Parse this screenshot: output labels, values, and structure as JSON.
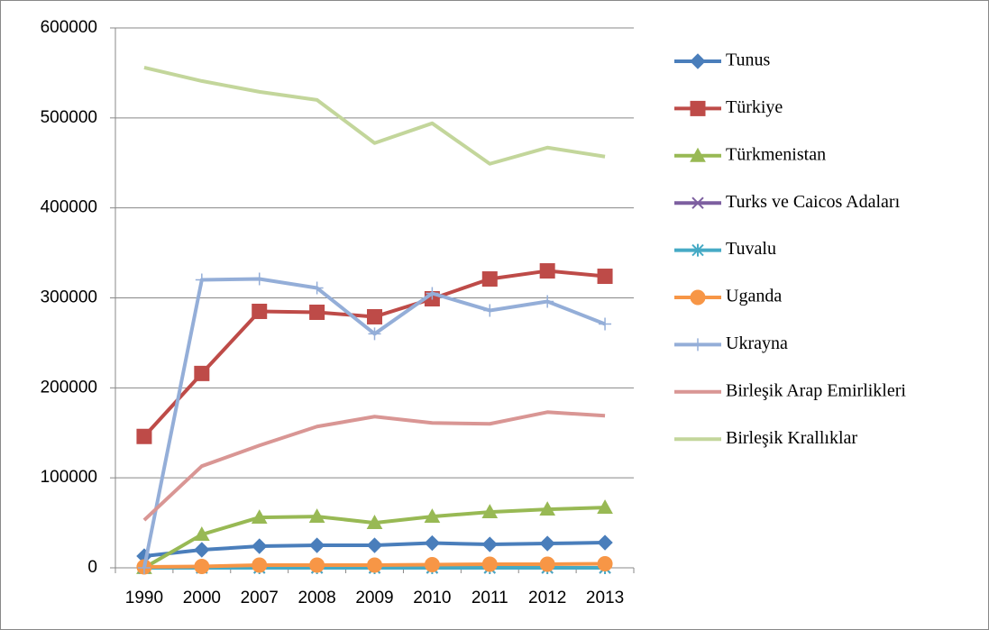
{
  "chart_data": {
    "type": "line",
    "categories": [
      "1990",
      "2000",
      "2007",
      "2008",
      "2009",
      "2010",
      "2011",
      "2012",
      "2013"
    ],
    "ylim": [
      0,
      600000
    ],
    "yticks": [
      0,
      100000,
      200000,
      300000,
      400000,
      500000,
      600000
    ],
    "grid": true,
    "legend": "right",
    "series": [
      {
        "name": "Tunus",
        "color": "#4a7ebb",
        "marker": "diamond",
        "values": [
          13000,
          20000,
          24000,
          25000,
          25000,
          27500,
          26000,
          27000,
          28000
        ]
      },
      {
        "name": "Türkiye",
        "color": "#be4b48",
        "marker": "square",
        "values": [
          146000,
          216000,
          285000,
          284000,
          279000,
          299000,
          321000,
          330000,
          324000
        ]
      },
      {
        "name": "Türkmenistan",
        "color": "#98b954",
        "marker": "triangle",
        "values": [
          0,
          37000,
          56000,
          57000,
          50000,
          57000,
          62000,
          65000,
          67000
        ]
      },
      {
        "name": "Turks ve Caicos Adaları",
        "color": "#7d5fa0",
        "marker": "x",
        "values": [
          0,
          0,
          0,
          0,
          0,
          0,
          0,
          0,
          0
        ]
      },
      {
        "name": "Tuvalu",
        "color": "#46aac5",
        "marker": "asterisk",
        "values": [
          0,
          0,
          0,
          0,
          0,
          0,
          0,
          0,
          0
        ]
      },
      {
        "name": "Uganda",
        "color": "#f79646",
        "marker": "circle",
        "values": [
          1000,
          1500,
          3000,
          3000,
          3000,
          3500,
          4000,
          4000,
          4500
        ]
      },
      {
        "name": "Ukrayna",
        "color": "#94aed8",
        "marker": "plus",
        "values": [
          0,
          320000,
          321000,
          311000,
          260000,
          305000,
          286000,
          296000,
          271000
        ]
      },
      {
        "name": "Birleşik Arap Emirlikleri",
        "color": "#d99694",
        "marker": "none",
        "values": [
          53000,
          113000,
          136000,
          157000,
          168000,
          161000,
          160000,
          173000,
          169000
        ]
      },
      {
        "name": "Birleşik Krallıklar",
        "color": "#c3d69b",
        "marker": "none",
        "values": [
          556000,
          541000,
          529000,
          520000,
          472000,
          494000,
          449000,
          467000,
          457000
        ]
      }
    ]
  }
}
